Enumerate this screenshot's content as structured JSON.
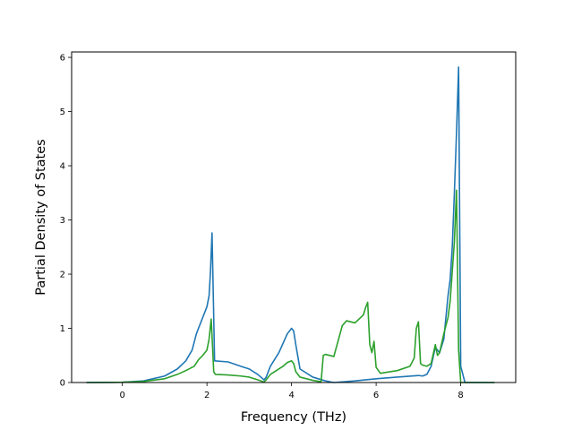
{
  "chart_data": {
    "type": "line",
    "title": "",
    "xlabel": "Frequency (THz)",
    "ylabel": "Partial Density of States",
    "xlim": [
      -1.2,
      9.3
    ],
    "ylim": [
      0,
      6.1
    ],
    "xticks": [
      0,
      2,
      4,
      6,
      8
    ],
    "yticks": [
      0,
      1,
      2,
      3,
      4,
      5,
      6
    ],
    "grid": false,
    "legend": "none",
    "series": [
      {
        "color": "#1f77b4",
        "x": [
          -0.85,
          0.0,
          0.5,
          1.0,
          1.3,
          1.5,
          1.65,
          1.75,
          1.8,
          1.9,
          2.0,
          2.05,
          2.08,
          2.12,
          2.15,
          2.18,
          2.5,
          2.8,
          3.0,
          3.2,
          3.35,
          3.4,
          3.5,
          3.7,
          3.9,
          4.0,
          4.05,
          4.1,
          4.2,
          4.5,
          4.8,
          5.0,
          5.5,
          6.0,
          6.5,
          7.0,
          7.1,
          7.2,
          7.3,
          7.4,
          7.5,
          7.6,
          7.7,
          7.75,
          7.8,
          7.85,
          7.9,
          7.95,
          8.0,
          8.1,
          8.8
        ],
        "y": [
          0.0,
          0.005,
          0.03,
          0.12,
          0.25,
          0.4,
          0.6,
          0.9,
          1.0,
          1.2,
          1.4,
          1.6,
          2.0,
          2.76,
          1.6,
          0.4,
          0.38,
          0.3,
          0.25,
          0.15,
          0.05,
          0.1,
          0.3,
          0.55,
          0.9,
          1.0,
          0.95,
          0.7,
          0.25,
          0.1,
          0.03,
          0.0,
          0.03,
          0.07,
          0.1,
          0.13,
          0.12,
          0.15,
          0.3,
          0.65,
          0.55,
          0.8,
          1.6,
          1.9,
          2.5,
          3.5,
          4.6,
          5.82,
          0.3,
          0.0,
          0.0
        ]
      },
      {
        "color": "#2ca02c",
        "x": [
          -0.85,
          0.0,
          0.5,
          1.0,
          1.3,
          1.5,
          1.7,
          1.8,
          1.9,
          2.0,
          2.05,
          2.1,
          2.13,
          2.16,
          2.2,
          2.5,
          2.8,
          3.0,
          3.2,
          3.35,
          3.4,
          3.5,
          3.8,
          3.9,
          4.0,
          4.05,
          4.1,
          4.2,
          4.5,
          4.65,
          4.7,
          4.75,
          4.8,
          5.0,
          5.2,
          5.3,
          5.5,
          5.7,
          5.75,
          5.8,
          5.85,
          5.9,
          5.95,
          6.0,
          6.1,
          6.5,
          6.8,
          6.9,
          6.95,
          7.0,
          7.05,
          7.1,
          7.2,
          7.3,
          7.4,
          7.45,
          7.5,
          7.6,
          7.7,
          7.75,
          7.85,
          7.9,
          7.95,
          8.0,
          8.05,
          8.8
        ],
        "y": [
          0.0,
          0.005,
          0.02,
          0.07,
          0.15,
          0.22,
          0.3,
          0.42,
          0.5,
          0.6,
          0.8,
          1.17,
          0.7,
          0.2,
          0.15,
          0.14,
          0.12,
          0.1,
          0.05,
          0.01,
          0.05,
          0.15,
          0.3,
          0.37,
          0.4,
          0.35,
          0.2,
          0.1,
          0.04,
          0.02,
          0.02,
          0.5,
          0.52,
          0.48,
          1.05,
          1.14,
          1.1,
          1.25,
          1.38,
          1.48,
          0.7,
          0.55,
          0.76,
          0.28,
          0.17,
          0.22,
          0.3,
          0.45,
          1.0,
          1.12,
          0.35,
          0.32,
          0.3,
          0.35,
          0.7,
          0.5,
          0.55,
          0.9,
          1.2,
          1.5,
          2.6,
          3.55,
          0.6,
          0.0,
          0.0,
          0.0
        ]
      }
    ]
  }
}
